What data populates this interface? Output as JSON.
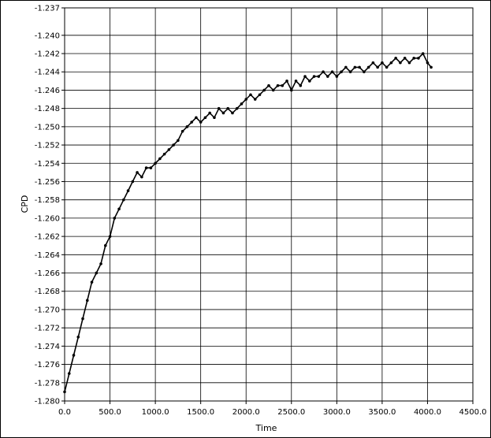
{
  "chart_data": {
    "type": "line",
    "title": "",
    "xlabel": "Time",
    "ylabel": "CPD",
    "xlim": [
      0,
      4500
    ],
    "ylim": [
      -1.28,
      -1.237
    ],
    "x_ticks": [
      "0.0",
      "500.0",
      "1000.0",
      "1500.0",
      "2000.0",
      "2500.0",
      "3000.0",
      "3500.0",
      "4000.0",
      "4500.0"
    ],
    "y_ticks": [
      "-1.237",
      "-1.240",
      "-1.242",
      "-1.244",
      "-1.246",
      "-1.248",
      "-1.250",
      "-1.252",
      "-1.254",
      "-1.256",
      "-1.258",
      "-1.260",
      "-1.262",
      "-1.264",
      "-1.266",
      "-1.268",
      "-1.270",
      "-1.272",
      "-1.274",
      "-1.276",
      "-1.278",
      "-1.280"
    ],
    "grid": true,
    "marker": "point",
    "series": [
      {
        "color": "#000000",
        "x": [
          0,
          50,
          100,
          150,
          200,
          250,
          300,
          350,
          400,
          450,
          500,
          550,
          600,
          650,
          700,
          750,
          800,
          850,
          900,
          950,
          1000,
          1050,
          1100,
          1150,
          1200,
          1250,
          1300,
          1350,
          1400,
          1450,
          1500,
          1550,
          1600,
          1650,
          1700,
          1750,
          1800,
          1850,
          1900,
          1950,
          2000,
          2050,
          2100,
          2150,
          2200,
          2250,
          2300,
          2350,
          2400,
          2450,
          2500,
          2550,
          2600,
          2650,
          2700,
          2750,
          2800,
          2850,
          2900,
          2950,
          3000,
          3050,
          3100,
          3150,
          3200,
          3250,
          3300,
          3350,
          3400,
          3450,
          3500,
          3550,
          3600,
          3650,
          3700,
          3750,
          3800,
          3850,
          3900,
          3950,
          4000,
          4040
        ],
        "y": [
          -1.279,
          -1.277,
          -1.275,
          -1.273,
          -1.271,
          -1.269,
          -1.267,
          -1.266,
          -1.265,
          -1.263,
          -1.262,
          -1.26,
          -1.259,
          -1.258,
          -1.257,
          -1.256,
          -1.255,
          -1.2555,
          -1.2545,
          -1.2545,
          -1.254,
          -1.2535,
          -1.253,
          -1.2525,
          -1.252,
          -1.2515,
          -1.2505,
          -1.25,
          -1.2495,
          -1.249,
          -1.2495,
          -1.249,
          -1.2485,
          -1.249,
          -1.248,
          -1.2485,
          -1.248,
          -1.2485,
          -1.248,
          -1.2475,
          -1.247,
          -1.2465,
          -1.247,
          -1.2465,
          -1.246,
          -1.2455,
          -1.246,
          -1.2455,
          -1.2455,
          -1.245,
          -1.246,
          -1.245,
          -1.2455,
          -1.2445,
          -1.245,
          -1.2445,
          -1.2445,
          -1.244,
          -1.2445,
          -1.244,
          -1.2445,
          -1.244,
          -1.2435,
          -1.244,
          -1.2435,
          -1.2435,
          -1.244,
          -1.2435,
          -1.243,
          -1.2435,
          -1.243,
          -1.2435,
          -1.243,
          -1.2425,
          -1.243,
          -1.2425,
          -1.243,
          -1.2425,
          -1.2425,
          -1.242,
          -1.243,
          -1.2435
        ]
      }
    ]
  }
}
